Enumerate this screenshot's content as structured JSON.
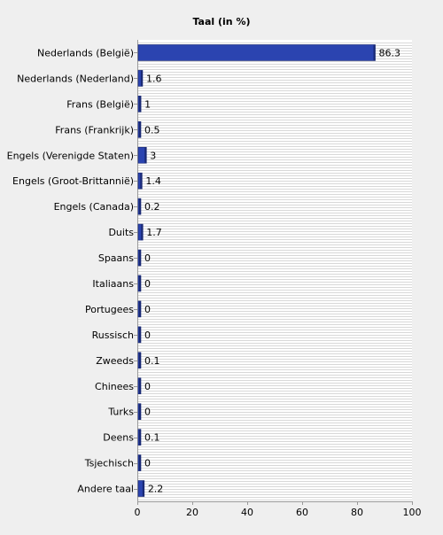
{
  "chart_data": {
    "type": "bar",
    "orientation": "horizontal",
    "title": "Taal (in %)",
    "xlabel": "",
    "ylabel": "",
    "categories": [
      "Nederlands (België)",
      "Nederlands (Nederland)",
      "Frans (België)",
      "Frans (Frankrijk)",
      "Engels (Verenigde Staten)",
      "Engels (Groot-Brittannië)",
      "Engels (Canada)",
      "Duits",
      "Spaans",
      "Italiaans",
      "Portugees",
      "Russisch",
      "Zweeds",
      "Chinees",
      "Turks",
      "Deens",
      "Tsjechisch",
      "Andere taal"
    ],
    "values": [
      86.3,
      1.6,
      1,
      0.5,
      3,
      1.4,
      0.2,
      1.7,
      0,
      0,
      0,
      0,
      0.1,
      0,
      0,
      0.1,
      0,
      2.2
    ],
    "value_labels": [
      "86.3",
      "1.6",
      "1",
      "0.5",
      "3",
      "1.4",
      "0.2",
      "1.7",
      "0",
      "0",
      "0",
      "0",
      "0.1",
      "0",
      "0",
      "0.1",
      "0",
      "2.2"
    ],
    "xlim": [
      0,
      100
    ],
    "xticks": [
      0,
      20,
      40,
      60,
      80,
      100
    ],
    "grid": true,
    "legend": "none",
    "colors": {
      "bar": "#2b44b0",
      "bar_edge": "#1a2a75",
      "background": "#efefef",
      "plot_background": "#ffffff",
      "grid": "#d8d8d8",
      "axis": "#999999",
      "text": "#000000"
    }
  }
}
